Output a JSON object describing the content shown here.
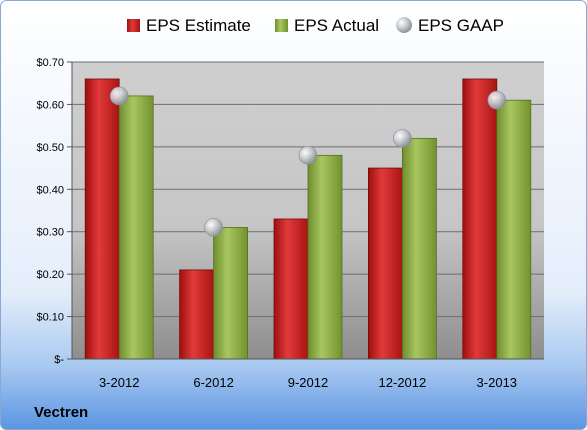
{
  "chart_data": {
    "type": "bar",
    "title": "",
    "xlabel": "",
    "ylabel": "",
    "categories": [
      "3-2012",
      "6-2012",
      "9-2012",
      "12-2012",
      "3-2013"
    ],
    "series": [
      {
        "name": "EPS Estimate",
        "kind": "bar",
        "color": "#cc1f1f",
        "values": [
          0.66,
          0.21,
          0.33,
          0.45,
          0.66
        ]
      },
      {
        "name": "EPS Actual",
        "kind": "bar",
        "color": "#8fb046",
        "values": [
          0.62,
          0.31,
          0.48,
          0.52,
          0.61
        ]
      },
      {
        "name": "EPS GAAP",
        "kind": "marker",
        "color": "#b8bcc4",
        "values": [
          0.62,
          0.31,
          0.48,
          0.52,
          0.61
        ]
      }
    ],
    "ylim": [
      0,
      0.7
    ],
    "yticks": [
      0,
      0.1,
      0.2,
      0.3,
      0.4,
      0.5,
      0.6,
      0.7
    ],
    "ytick_labels": [
      "$-",
      "$0.10",
      "$0.20",
      "$0.30",
      "$0.40",
      "$0.50",
      "$0.60",
      "$0.70"
    ],
    "grid": true,
    "legend_position": "top"
  },
  "footer": {
    "company": "Vectren"
  }
}
